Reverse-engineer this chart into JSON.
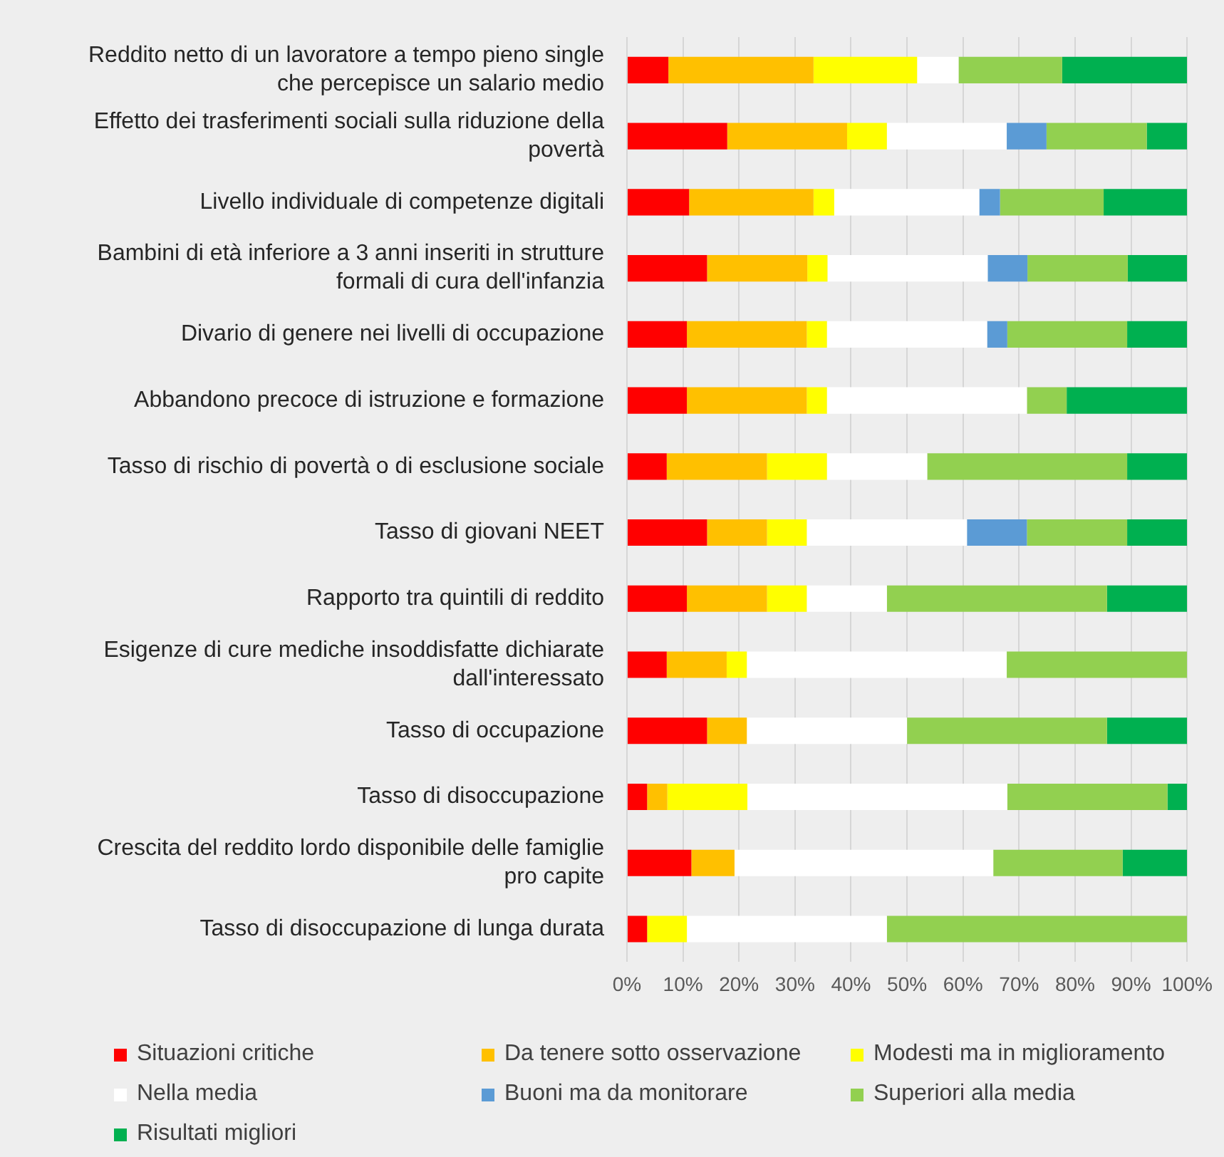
{
  "chart_data": {
    "type": "bar",
    "orientation": "horizontal",
    "stacked": true,
    "categories": [
      "Reddito netto di un lavoratore a tempo pieno single che percepisce un salario medio",
      "Effetto dei trasferimenti sociali sulla riduzione della povertà",
      "Livello individuale di competenze digitali",
      "Bambini di età inferiore a 3 anni inseriti in strutture formali di cura dell'infanzia",
      "Divario di genere nei livelli di occupazione",
      "Abbandono precoce di istruzione e formazione",
      "Tasso di rischio di povertà o di esclusione sociale",
      "Tasso di giovani NEET",
      "Rapporto tra quintili di reddito",
      "Esigenze di cure mediche insoddisfatte dichiarate dall'interessato",
      "Tasso di occupazione",
      "Tasso di disoccupazione",
      "Crescita del reddito lordo disponibile delle famiglie pro capite",
      "Tasso di disoccupazione di lunga durata"
    ],
    "series": [
      {
        "name": "Situazioni critiche",
        "color": "#ff0000",
        "values": [
          7.4,
          17.9,
          11.1,
          14.3,
          10.7,
          10.7,
          7.1,
          14.3,
          10.7,
          7.1,
          14.3,
          3.6,
          11.5,
          3.6
        ]
      },
      {
        "name": "Da tenere sotto osservazione",
        "color": "#ffc000",
        "values": [
          25.9,
          21.4,
          22.2,
          17.9,
          21.4,
          21.4,
          17.9,
          10.7,
          14.3,
          10.7,
          7.1,
          3.6,
          7.7,
          0
        ]
      },
      {
        "name": "Modesti ma in miglioramento",
        "color": "#ffff00",
        "values": [
          18.5,
          7.1,
          3.7,
          3.6,
          3.6,
          3.6,
          10.7,
          7.1,
          7.1,
          3.6,
          0,
          14.3,
          0,
          7.1
        ]
      },
      {
        "name": "Nella media",
        "color": "#ffffff",
        "values": [
          7.4,
          21.4,
          25.9,
          28.6,
          28.6,
          35.7,
          17.9,
          28.6,
          14.3,
          46.4,
          28.6,
          46.4,
          46.2,
          35.7
        ]
      },
      {
        "name": "Buoni ma da monitorare",
        "color": "#5b9bd5",
        "values": [
          0,
          7.1,
          3.7,
          7.1,
          3.6,
          0,
          0,
          10.7,
          0,
          0,
          0,
          0,
          0,
          0
        ]
      },
      {
        "name": "Superiori alla media",
        "color": "#92d050",
        "values": [
          18.5,
          17.9,
          18.5,
          17.9,
          21.4,
          7.1,
          35.7,
          17.9,
          39.3,
          32.2,
          35.7,
          28.6,
          23.1,
          53.6
        ]
      },
      {
        "name": "Risultati migliori",
        "color": "#00b050",
        "values": [
          22.3,
          7.2,
          14.9,
          10.6,
          10.7,
          21.5,
          10.7,
          10.7,
          14.3,
          0,
          14.3,
          3.5,
          11.5,
          0
        ]
      }
    ],
    "xlim": [
      0,
      100
    ],
    "xticks": [
      {
        "value": 0,
        "label": "0%"
      },
      {
        "value": 10,
        "label": "10%"
      },
      {
        "value": 20,
        "label": "20%"
      },
      {
        "value": 30,
        "label": "30%"
      },
      {
        "value": 40,
        "label": "40%"
      },
      {
        "value": 50,
        "label": "50%"
      },
      {
        "value": 60,
        "label": "60%"
      },
      {
        "value": 70,
        "label": "70%"
      },
      {
        "value": 80,
        "label": "80%"
      },
      {
        "value": 90,
        "label": "90%"
      },
      {
        "value": 100,
        "label": "100%"
      }
    ],
    "grid": "x",
    "legend": "bottom"
  }
}
